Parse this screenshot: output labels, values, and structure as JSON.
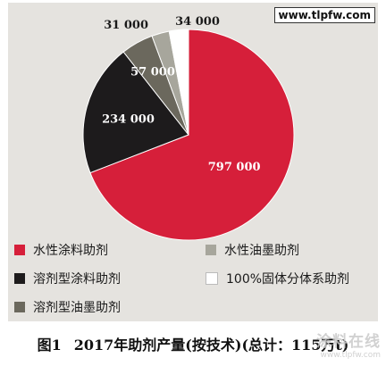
{
  "watermark_top": "www.tlpfw.com",
  "watermark_bottom": {
    "title": "涂料在线",
    "url": "www.tlpfw.com"
  },
  "caption": {
    "number": "图1",
    "text": "2017年助剂产量(按技术)(总计：115万t)"
  },
  "legend": [
    {
      "label": "水性涂料助剂",
      "color": "#d61f3a"
    },
    {
      "label": "水性油墨助剂",
      "color": "#a7a69c"
    },
    {
      "label": "溶剂型涂料助剂",
      "color": "#1d1b1c"
    },
    {
      "label": "100%固体分体系助剂",
      "color": "#ffffff"
    },
    {
      "label": "溶剂型油墨助剂",
      "color": "#6b685d"
    }
  ],
  "chart_data": {
    "type": "pie",
    "title": "",
    "slices": [
      {
        "name": "水性涂料助剂",
        "value": 797000,
        "label": "797 000",
        "color": "#d61f3a"
      },
      {
        "name": "溶剂型涂料助剂",
        "value": 234000,
        "label": "234 000",
        "color": "#1d1b1c"
      },
      {
        "name": "溶剂型油墨助剂",
        "value": 57000,
        "label": "57 000",
        "color": "#6b685d"
      },
      {
        "name": "水性油墨助剂",
        "value": 31000,
        "label": "31 000",
        "color": "#a7a69c"
      },
      {
        "name": "100%固体分体系助剂",
        "value": 34000,
        "label": "34 000",
        "color": "#ffffff"
      }
    ],
    "legend_position": "bottom"
  }
}
